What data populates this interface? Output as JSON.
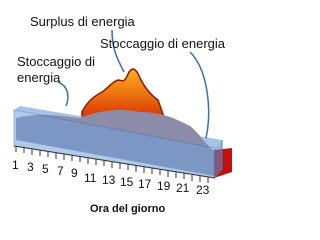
{
  "labels": {
    "surplus": "Surplus  di energia",
    "storage_right": "Stoccaggio di energia",
    "storage_left": [
      "Stoccaggio di",
      "energia"
    ]
  },
  "axis": {
    "ticks": [
      "1",
      "3",
      "5",
      "7",
      "9",
      "11",
      "13",
      "15",
      "17",
      "19",
      "21",
      "23"
    ],
    "title": "Ora del giorno"
  }
}
